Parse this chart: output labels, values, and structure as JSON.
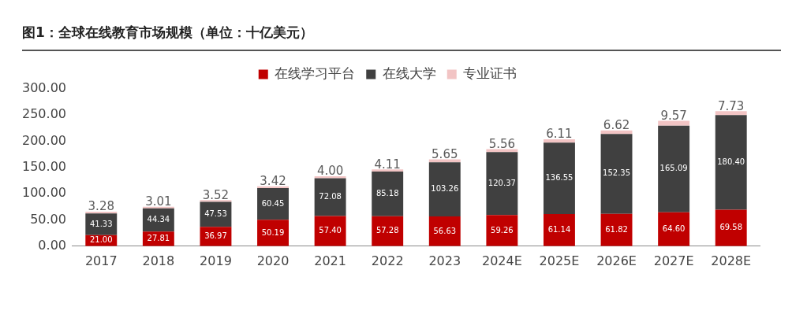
{
  "chart_data": {
    "type": "bar",
    "title": "图1：全球在线教育市场规模（单位：十亿美元）",
    "stacked": true,
    "legend": "top",
    "grid": false,
    "categories": [
      "2017",
      "2018",
      "2019",
      "2020",
      "2021",
      "2022",
      "2023",
      "2024E",
      "2025E",
      "2026E",
      "2027E",
      "2028E"
    ],
    "series": [
      {
        "name": "在线学习平台",
        "color": "#c00000",
        "values": [
          21.0,
          27.81,
          36.97,
          50.19,
          57.4,
          57.28,
          56.63,
          59.26,
          61.14,
          61.82,
          64.6,
          69.58
        ],
        "value_labels": [
          "21.00",
          "27.81",
          "36.97",
          "50.19",
          "57.40",
          "57.28",
          "56.63",
          "59.26",
          "61.14",
          "61.82",
          "64.60",
          "69.58"
        ]
      },
      {
        "name": "在线大学",
        "color": "#404040",
        "values": [
          41.33,
          44.34,
          47.53,
          60.45,
          72.08,
          85.18,
          103.26,
          120.37,
          136.55,
          152.35,
          165.09,
          180.4
        ],
        "value_labels": [
          "41.33",
          "44.34",
          "47.53",
          "60.45",
          "72.08",
          "85.18",
          "103.26",
          "120.37",
          "136.55",
          "152.35",
          "165.09",
          "180.40"
        ]
      },
      {
        "name": "专业证书",
        "color": "#f2c4c4",
        "values": [
          3.28,
          3.01,
          3.52,
          3.42,
          4.0,
          4.11,
          5.65,
          5.56,
          6.11,
          6.62,
          9.57,
          7.73
        ],
        "value_labels": [
          "3.28",
          "3.01",
          "3.52",
          "3.42",
          "4.00",
          "4.11",
          "5.65",
          "5.56",
          "6.11",
          "6.62",
          "9.57",
          "7.73"
        ]
      }
    ],
    "ylim": [
      0,
      300
    ],
    "yticks": [
      {
        "value": 0,
        "label": "0.00"
      },
      {
        "value": 50,
        "label": "50.00"
      },
      {
        "value": 100,
        "label": "100.00"
      },
      {
        "value": 150,
        "label": "150.00"
      },
      {
        "value": 200,
        "label": "200.00"
      },
      {
        "value": 250,
        "label": "250.00"
      },
      {
        "value": 300,
        "label": "300.00"
      }
    ]
  }
}
